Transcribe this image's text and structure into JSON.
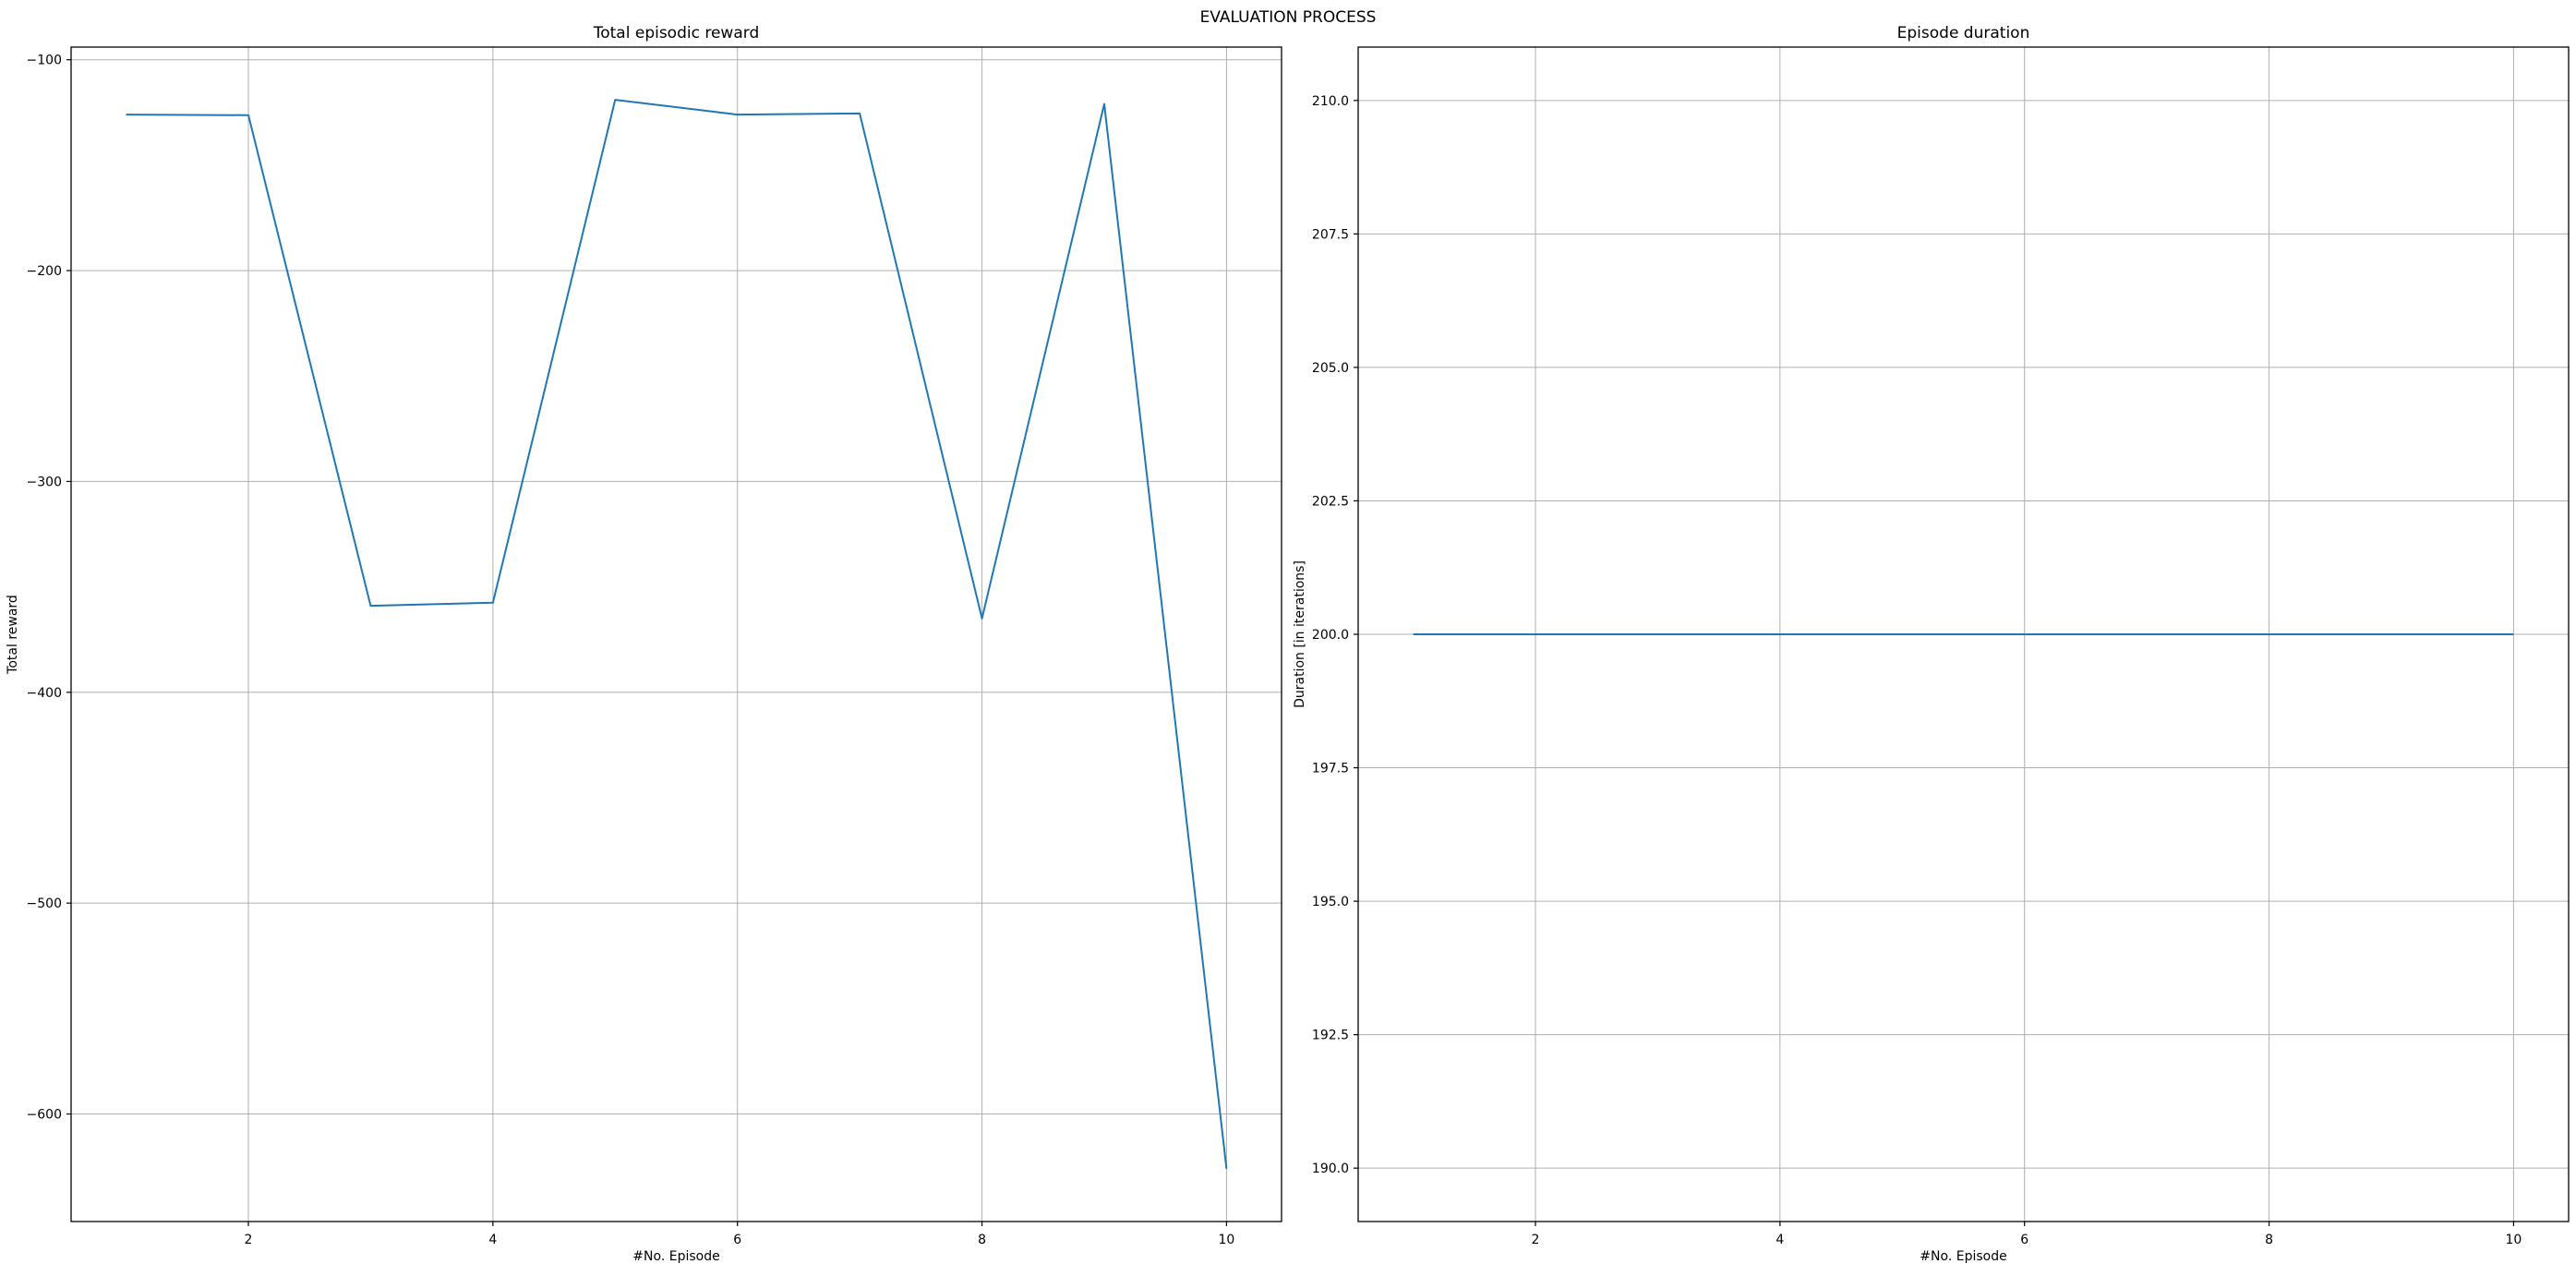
{
  "figure": {
    "suptitle": "EVALUATION PROCESS"
  },
  "chart_data": [
    {
      "type": "line",
      "title": "Total episodic reward",
      "xlabel": "#No. Episode",
      "ylabel": "Total reward",
      "x": [
        1,
        2,
        3,
        4,
        5,
        6,
        7,
        8,
        9,
        10
      ],
      "series": [
        {
          "values": [
            -126,
            -126.3,
            -359,
            -357.5,
            -119,
            -126,
            -125.5,
            -365,
            -121,
            -626
          ],
          "color": "#1f77b4"
        }
      ],
      "xlim": [
        0.55,
        10.45
      ],
      "ylim": [
        -651,
        -94
      ],
      "xticks": [
        2,
        4,
        6,
        8,
        10
      ],
      "xtick_labels": [
        "2",
        "4",
        "6",
        "8",
        "10"
      ],
      "yticks": [
        -100,
        -200,
        -300,
        -400,
        -500,
        -600
      ],
      "ytick_labels": [
        "−100",
        "−200",
        "−300",
        "−400",
        "−500",
        "−600"
      ],
      "grid": true
    },
    {
      "type": "line",
      "title": "Episode duration",
      "xlabel": "#No. Episode",
      "ylabel": "Duration [in iterations]",
      "x": [
        1,
        2,
        3,
        4,
        5,
        6,
        7,
        8,
        9,
        10
      ],
      "series": [
        {
          "values": [
            200,
            200,
            200,
            200,
            200,
            200,
            200,
            200,
            200,
            200
          ],
          "color": "#1f77b4"
        }
      ],
      "xlim": [
        0.55,
        10.45
      ],
      "ylim": [
        189,
        211
      ],
      "xticks": [
        2,
        4,
        6,
        8,
        10
      ],
      "xtick_labels": [
        "2",
        "4",
        "6",
        "8",
        "10"
      ],
      "yticks": [
        190.0,
        192.5,
        195.0,
        197.5,
        200.0,
        202.5,
        205.0,
        207.5,
        210.0
      ],
      "ytick_labels": [
        "190.0",
        "192.5",
        "195.0",
        "197.5",
        "200.0",
        "202.5",
        "205.0",
        "207.5",
        "210.0"
      ],
      "grid": true
    }
  ]
}
